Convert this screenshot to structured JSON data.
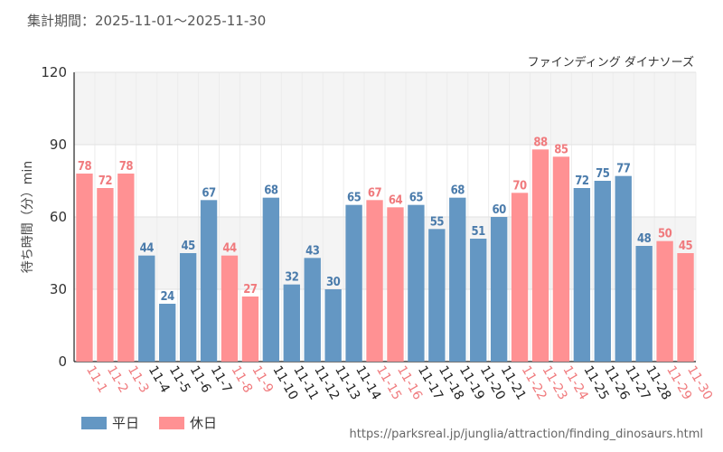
{
  "header": {
    "period": "集計期間：2025-11-01～2025-11-30"
  },
  "source": "https://parksreal.jp/junglia/attraction/finding_dinosaurs.html",
  "legend": [
    {
      "label": "平日",
      "color": "#6497c3"
    },
    {
      "label": "休日",
      "color": "#ff9193"
    }
  ],
  "chart_data": {
    "type": "bar",
    "title": "ファインディング ダイナソーズ",
    "ylabel": "待ち時間（分）min",
    "xlabel": "",
    "ylim": [
      0,
      120
    ],
    "yticks": [
      0,
      30,
      60,
      90,
      120
    ],
    "grid": true,
    "legend_position": "bottom-left",
    "categories": [
      "11-1",
      "11-2",
      "11-3",
      "11-4",
      "11-5",
      "11-6",
      "11-7",
      "11-8",
      "11-9",
      "11-10",
      "11-11",
      "11-12",
      "11-13",
      "11-14",
      "11-15",
      "11-16",
      "11-17",
      "11-18",
      "11-19",
      "11-20",
      "11-21",
      "11-22",
      "11-23",
      "11-24",
      "11-25",
      "11-26",
      "11-27",
      "11-28",
      "11-29",
      "11-30"
    ],
    "values": [
      78,
      72,
      78,
      44,
      24,
      45,
      67,
      44,
      27,
      68,
      32,
      43,
      30,
      65,
      67,
      64,
      65,
      55,
      68,
      51,
      60,
      70,
      88,
      85,
      72,
      75,
      77,
      48,
      50,
      45
    ],
    "day_type": [
      "休日",
      "休日",
      "休日",
      "平日",
      "平日",
      "平日",
      "平日",
      "休日",
      "休日",
      "平日",
      "平日",
      "平日",
      "平日",
      "平日",
      "休日",
      "休日",
      "平日",
      "平日",
      "平日",
      "平日",
      "平日",
      "休日",
      "休日",
      "休日",
      "平日",
      "平日",
      "平日",
      "平日",
      "休日",
      "休日"
    ],
    "colors": {
      "平日": {
        "bar": "#6497c3",
        "label": "#4a7bab"
      },
      "休日": {
        "bar": "#ff9193",
        "label": "#f07a7d"
      }
    }
  }
}
